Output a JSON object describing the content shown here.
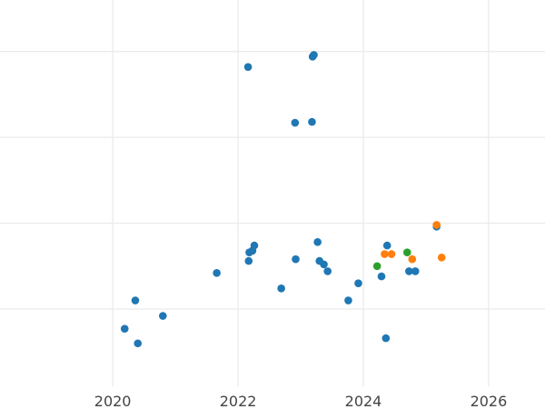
{
  "chart_data": {
    "type": "scatter",
    "title": "",
    "xlabel": "",
    "ylabel": "",
    "grid": true,
    "xlim": [
      2018.2,
      2026.9
    ],
    "ylim": [
      -0.9,
      3.6
    ],
    "x_ticks": [
      2020,
      2022,
      2024,
      2026
    ],
    "x_tick_labels": [
      "2020",
      "2022",
      "2024",
      "2026"
    ],
    "y_gridlines": [
      0,
      1,
      2,
      3
    ],
    "series": [
      {
        "color": "#1f77b4",
        "points": [
          {
            "x": 2020.19,
            "y": -0.23
          },
          {
            "x": 2020.36,
            "y": 0.1
          },
          {
            "x": 2020.4,
            "y": -0.4
          },
          {
            "x": 2020.8,
            "y": -0.08
          },
          {
            "x": 2021.66,
            "y": 0.42
          },
          {
            "x": 2022.16,
            "y": 2.82
          },
          {
            "x": 2022.17,
            "y": 0.56
          },
          {
            "x": 2022.18,
            "y": 0.66
          },
          {
            "x": 2022.23,
            "y": 0.68
          },
          {
            "x": 2022.26,
            "y": 0.74
          },
          {
            "x": 2022.69,
            "y": 0.24
          },
          {
            "x": 2022.91,
            "y": 2.17
          },
          {
            "x": 2022.92,
            "y": 0.58
          },
          {
            "x": 2023.18,
            "y": 2.18
          },
          {
            "x": 2023.19,
            "y": 2.94
          },
          {
            "x": 2023.21,
            "y": 2.96
          },
          {
            "x": 2023.27,
            "y": 0.78
          },
          {
            "x": 2023.3,
            "y": 0.56
          },
          {
            "x": 2023.37,
            "y": 0.52
          },
          {
            "x": 2023.43,
            "y": 0.44
          },
          {
            "x": 2023.76,
            "y": 0.1
          },
          {
            "x": 2023.92,
            "y": 0.3
          },
          {
            "x": 2024.29,
            "y": 0.38
          },
          {
            "x": 2024.36,
            "y": -0.34
          },
          {
            "x": 2024.38,
            "y": 0.74
          },
          {
            "x": 2024.73,
            "y": 0.44
          },
          {
            "x": 2024.83,
            "y": 0.44
          },
          {
            "x": 2025.17,
            "y": 0.96
          }
        ]
      },
      {
        "color": "#ff7f0e",
        "points": [
          {
            "x": 2024.34,
            "y": 0.64
          },
          {
            "x": 2024.45,
            "y": 0.64
          },
          {
            "x": 2024.78,
            "y": 0.58
          },
          {
            "x": 2025.17,
            "y": 0.98
          },
          {
            "x": 2025.25,
            "y": 0.6
          }
        ]
      },
      {
        "color": "#2ca02c",
        "points": [
          {
            "x": 2024.22,
            "y": 0.5
          },
          {
            "x": 2024.7,
            "y": 0.66
          }
        ]
      }
    ]
  }
}
